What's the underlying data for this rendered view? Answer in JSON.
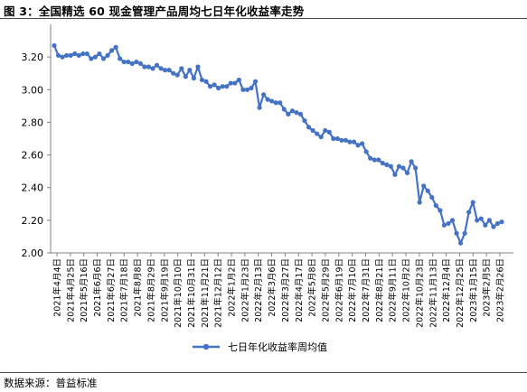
{
  "figure_title": "图 3：全国精选 60 现金管理产品周均七日年化收益率走势",
  "source_note": "数据来源：普益标准",
  "colors": {
    "series": "#4472C4",
    "axis": "#808080"
  },
  "chart_data": {
    "type": "line",
    "title": "",
    "xlabel": "",
    "ylabel": "",
    "ylim": [
      2.0,
      3.4
    ],
    "yticks": [
      "2.00",
      "2.20",
      "2.40",
      "2.60",
      "2.80",
      "3.00",
      "3.20"
    ],
    "ytick_values": [
      2.0,
      2.2,
      2.4,
      2.6,
      2.8,
      3.0,
      3.2
    ],
    "grid": false,
    "legend_position": "bottom",
    "x_tick_labels": [
      "2021年4月4日",
      "2021年4月25日",
      "2021年5月16日",
      "2021年6月6日",
      "2021年6月27日",
      "2021年7月18日",
      "2021年8月8日",
      "2021年8月29日",
      "2021年9月19日",
      "2021年10月10日",
      "2021年10月31日",
      "2021年11月21日",
      "2021年12月12日",
      "2022年1月2日",
      "2022年1月23日",
      "2022年2月13日",
      "2022年3月6日",
      "2022年3月27日",
      "2022年4月17日",
      "2022年5月8日",
      "2022年5月29日",
      "2022年6月19日",
      "2022年7月10日",
      "2022年7月31日",
      "2022年8月21日",
      "2022年9月11日",
      "2022年10月2日",
      "2022年10月23日",
      "2022年11月13日",
      "2022年12月4日",
      "2022年12月25日",
      "2023年1月15日",
      "2023年2月5日",
      "2023年2月26日"
    ],
    "series": [
      {
        "name": "七日年化收益率周均值",
        "values": [
          3.27,
          3.21,
          3.2,
          3.21,
          3.21,
          3.22,
          3.21,
          3.22,
          3.22,
          3.19,
          3.2,
          3.22,
          3.19,
          3.21,
          3.24,
          3.26,
          3.19,
          3.17,
          3.17,
          3.16,
          3.17,
          3.16,
          3.14,
          3.14,
          3.13,
          3.15,
          3.13,
          3.12,
          3.12,
          3.1,
          3.09,
          3.13,
          3.08,
          3.12,
          3.07,
          3.14,
          3.06,
          3.05,
          3.02,
          3.03,
          3.01,
          3.02,
          3.02,
          3.04,
          3.04,
          3.06,
          3.0,
          3.0,
          3.01,
          3.05,
          2.89,
          2.97,
          2.94,
          2.93,
          2.92,
          2.92,
          2.88,
          2.85,
          2.87,
          2.86,
          2.85,
          2.81,
          2.77,
          2.75,
          2.73,
          2.71,
          2.75,
          2.74,
          2.7,
          2.7,
          2.69,
          2.69,
          2.68,
          2.68,
          2.66,
          2.67,
          2.62,
          2.58,
          2.57,
          2.57,
          2.55,
          2.54,
          2.53,
          2.48,
          2.53,
          2.52,
          2.49,
          2.56,
          2.52,
          2.31,
          2.41,
          2.38,
          2.34,
          2.29,
          2.26,
          2.17,
          2.18,
          2.2,
          2.12,
          2.06,
          2.12,
          2.25,
          2.31,
          2.2,
          2.21,
          2.17,
          2.2,
          2.16,
          2.18,
          2.19
        ]
      }
    ]
  }
}
